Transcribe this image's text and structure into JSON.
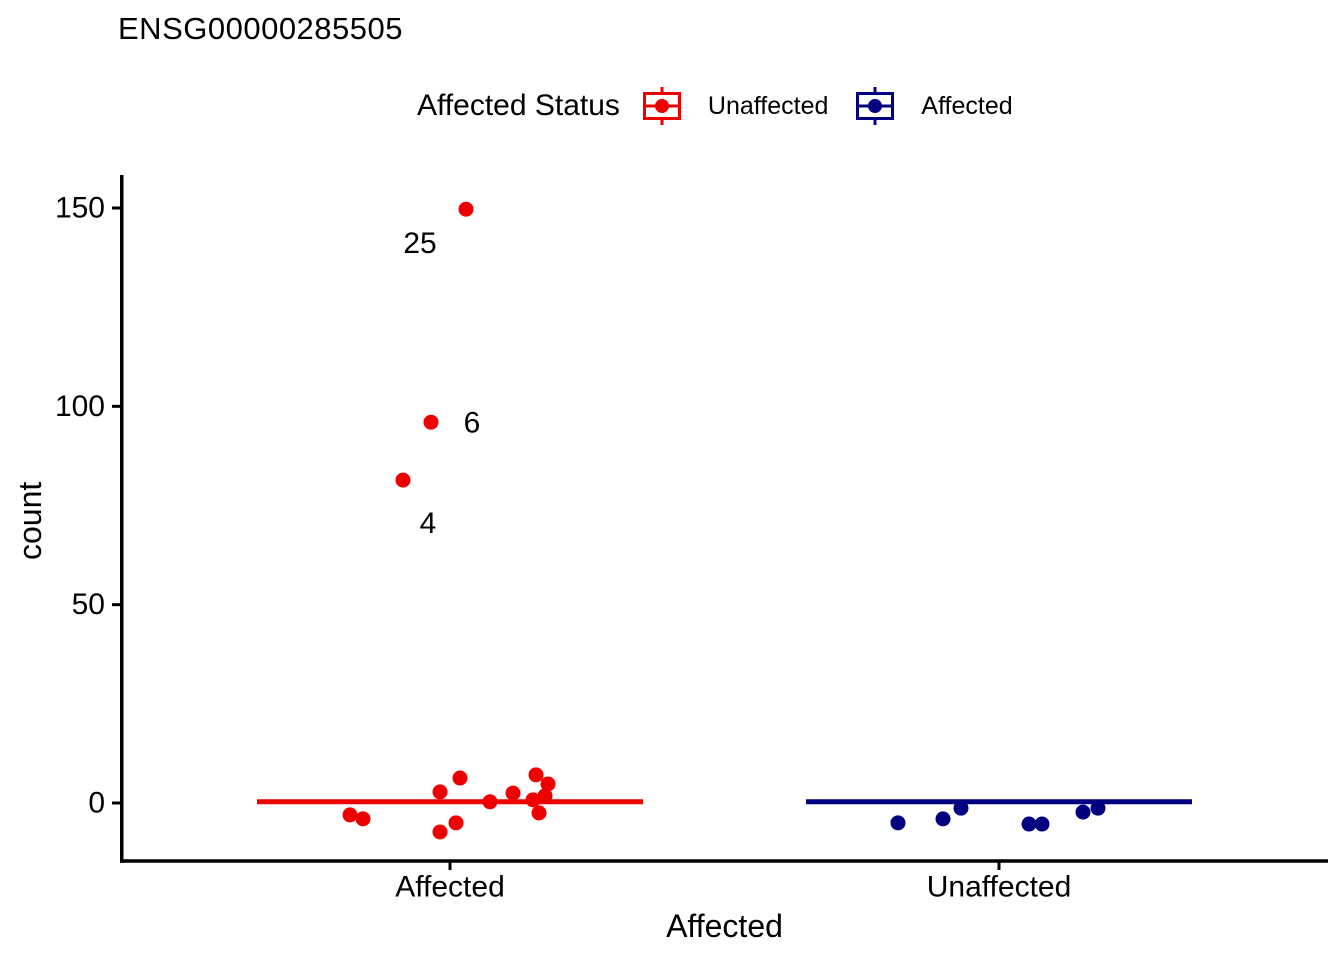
{
  "title": "ENSG00000285505",
  "chart_data": {
    "type": "scatter",
    "title": "ENSG00000285505",
    "xlabel": "Affected",
    "ylabel": "count",
    "categories": [
      "Affected",
      "Unaffected"
    ],
    "yticks": [
      0,
      50,
      100,
      150
    ],
    "ylim": [
      -15,
      158
    ],
    "grid": "off",
    "legend": {
      "title": "Affected Status",
      "position": "top",
      "items": [
        {
          "label": "Unaffected",
          "color": "#ee0000"
        },
        {
          "label": "Affected",
          "color": "#000080"
        }
      ]
    },
    "series": [
      {
        "name": "Unaffected",
        "color": "#ee0000",
        "category": "Affected",
        "median": 0.3,
        "points": [
          [
            -100,
            -3.0
          ],
          [
            -87,
            -4.0
          ],
          [
            -10,
            2.8
          ],
          [
            10,
            6.3
          ],
          [
            -10,
            -7.3
          ],
          [
            6,
            -5.0
          ],
          [
            40,
            0.3
          ],
          [
            63,
            2.5
          ],
          [
            86,
            7.1
          ],
          [
            98,
            4.8
          ],
          [
            83,
            0.8
          ],
          [
            95,
            1.8
          ],
          [
            89,
            -2.5
          ],
          [
            16,
            149.7
          ],
          [
            -19,
            96.0
          ],
          [
            -47,
            81.4
          ]
        ],
        "annotations": [
          {
            "text": "25",
            "dx": -30,
            "value": 141.0
          },
          {
            "text": "6",
            "dx": 22,
            "value": 95.8
          },
          {
            "text": "4",
            "dx": -22,
            "value": 70.5
          }
        ]
      },
      {
        "name": "Affected",
        "color": "#000080",
        "category": "Unaffected",
        "median": 0.3,
        "points": [
          [
            -101,
            -5.0
          ],
          [
            -56,
            -4.0
          ],
          [
            -38,
            -1.3
          ],
          [
            30,
            -5.3
          ],
          [
            43,
            -5.3
          ],
          [
            84,
            -2.3
          ],
          [
            99,
            -1.3
          ]
        ],
        "annotations": []
      }
    ]
  }
}
